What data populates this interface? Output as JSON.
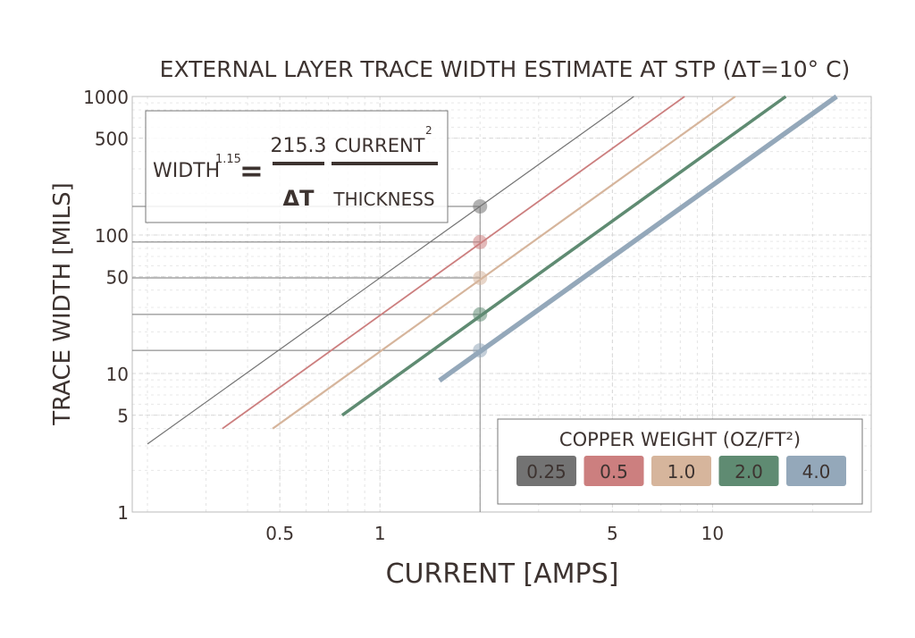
{
  "chart_data": {
    "type": "line",
    "title": "EXTERNAL LAYER TRACE WIDTH ESTIMATE AT STP (ΔT=10° C)",
    "xlabel": "CURRENT [AMPS]",
    "ylabel": "TRACE WIDTH [MILS]",
    "x_scale": "log",
    "y_scale": "log",
    "xlim": [
      0.18,
      30
    ],
    "ylim": [
      1,
      1000
    ],
    "x_ticks": [
      0.5,
      1,
      5,
      10
    ],
    "x_tick_labels": [
      "0.5",
      "1",
      "5",
      "10"
    ],
    "y_ticks": [
      1,
      5,
      10,
      50,
      100,
      500,
      1000
    ],
    "y_tick_labels": [
      "1",
      "5",
      "10",
      "50",
      "100",
      "500",
      "1000"
    ],
    "grid": true,
    "formula": {
      "lhs": "WIDTH",
      "exponent": "1.15",
      "equals": "=",
      "num1": "215.3",
      "den1": "ΔT",
      "num2": "CURRENT",
      "num2_exp": "2",
      "den2": "THICKNESS"
    },
    "legend": {
      "title": "COPPER WEIGHT (OZ/FT²)",
      "placement": "bottom-right"
    },
    "series": [
      {
        "name": "0.25",
        "color": "#737373",
        "x": [
          0.2,
          5.8
        ],
        "y": [
          3.1,
          1000
        ]
      },
      {
        "name": "0.5",
        "color": "#cc7f7f",
        "x": [
          0.336,
          8.24
        ],
        "y": [
          4.0,
          1000
        ]
      },
      {
        "name": "1.0",
        "color": "#d6b59c",
        "x": [
          0.476,
          11.7
        ],
        "y": [
          4.0,
          1000
        ]
      },
      {
        "name": "2.0",
        "color": "#5f8b72",
        "x": [
          0.77,
          16.6
        ],
        "y": [
          5.0,
          1000
        ]
      },
      {
        "name": "4.0",
        "color": "#94a8ba",
        "x": [
          1.51,
          23.6
        ],
        "y": [
          8.9,
          1000
        ]
      }
    ],
    "reference_current": 2.0,
    "reference_widths": [
      161,
      89,
      49,
      26.7,
      14.7
    ]
  }
}
